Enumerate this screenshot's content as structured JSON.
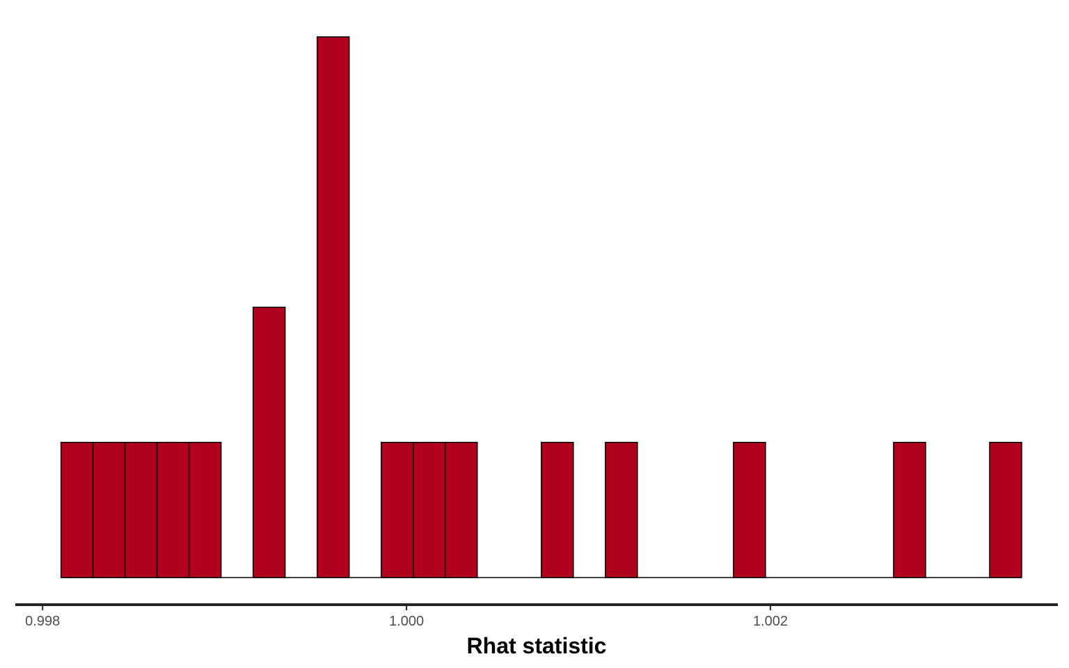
{
  "chart_data": {
    "type": "bar",
    "title": "",
    "xlabel": "Rhat statistic",
    "ylabel": "",
    "bin_width": 0.000176,
    "x_ticks": [
      {
        "value": 0.998,
        "label": "0.998"
      },
      {
        "value": 1.0,
        "label": "1.000"
      },
      {
        "value": 1.002,
        "label": "1.002"
      }
    ],
    "xlim": [
      0.99785,
      1.00358
    ],
    "ylim": [
      0,
      4
    ],
    "bins": [
      {
        "x": 0.998189,
        "count": 1
      },
      {
        "x": 0.998365,
        "count": 1
      },
      {
        "x": 0.998541,
        "count": 1
      },
      {
        "x": 0.998717,
        "count": 1
      },
      {
        "x": 0.998893,
        "count": 1
      },
      {
        "x": 0.999245,
        "count": 2
      },
      {
        "x": 0.999597,
        "count": 4
      },
      {
        "x": 0.999949,
        "count": 1
      },
      {
        "x": 1.000125,
        "count": 1
      },
      {
        "x": 1.000301,
        "count": 1
      },
      {
        "x": 1.000829,
        "count": 1
      },
      {
        "x": 1.001181,
        "count": 1
      },
      {
        "x": 1.001885,
        "count": 1
      },
      {
        "x": 1.002765,
        "count": 1
      },
      {
        "x": 1.003293,
        "count": 1
      }
    ],
    "grid": false,
    "legend": "none",
    "colors": {
      "fill": "#b2001f",
      "stroke": "#000000",
      "axis": "#262626"
    }
  }
}
